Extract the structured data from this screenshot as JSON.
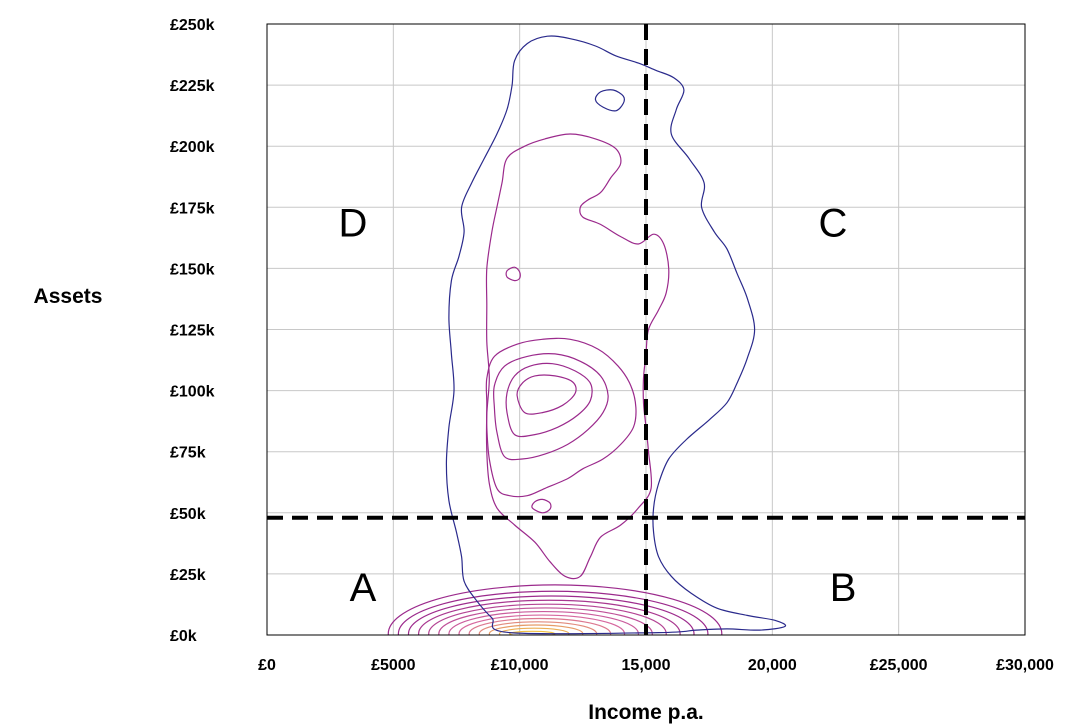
{
  "chart_data": {
    "type": "contour",
    "xlabel": "Income p.a.",
    "ylabel": "Assets",
    "xlim": [
      0,
      30000
    ],
    "ylim": [
      0,
      250000
    ],
    "x_ticks": [
      {
        "value": 0,
        "label": "£0"
      },
      {
        "value": 5000,
        "label": "£5000"
      },
      {
        "value": 10000,
        "label": "£10,000"
      },
      {
        "value": 15000,
        "label": "15,000"
      },
      {
        "value": 20000,
        "label": "20,000"
      },
      {
        "value": 25000,
        "label": "£25,000"
      },
      {
        "value": 30000,
        "label": "£30,000"
      }
    ],
    "y_ticks": [
      {
        "value": 0,
        "label": "£0k"
      },
      {
        "value": 25000,
        "label": "£25k"
      },
      {
        "value": 50000,
        "label": "£50k"
      },
      {
        "value": 75000,
        "label": "£75k"
      },
      {
        "value": 100000,
        "label": "£100k"
      },
      {
        "value": 125000,
        "label": "£125k"
      },
      {
        "value": 150000,
        "label": "£150k"
      },
      {
        "value": 175000,
        "label": "£175k"
      },
      {
        "value": 200000,
        "label": "£200k"
      },
      {
        "value": 225000,
        "label": "£225k"
      },
      {
        "value": 250000,
        "label": "£250k"
      }
    ],
    "grid": true,
    "threshold_lines": {
      "income": 15000,
      "assets": 48000
    },
    "quadrants": [
      {
        "label": "A",
        "x": 3800,
        "y": 14000
      },
      {
        "label": "B",
        "x": 22800,
        "y": 14000
      },
      {
        "label": "C",
        "x": 22400,
        "y": 163000
      },
      {
        "label": "D",
        "x": 3400,
        "y": 163000
      }
    ],
    "colors": {
      "outer": "#2a2a8c",
      "mid": "#9b2a8c",
      "inner": "#d86aa0",
      "core": "#f0c040",
      "dashed": "#000000",
      "grid": "#c8c8c8"
    },
    "contours": [
      {
        "name": "outer",
        "color": "#2a2a8c",
        "points": [
          [
            9600,
            1000
          ],
          [
            8900,
            7000
          ],
          [
            8300,
            14000
          ],
          [
            7800,
            22000
          ],
          [
            7700,
            32000
          ],
          [
            7500,
            42000
          ],
          [
            7200,
            55000
          ],
          [
            7100,
            70000
          ],
          [
            7200,
            85000
          ],
          [
            7400,
            100000
          ],
          [
            7300,
            115000
          ],
          [
            7200,
            130000
          ],
          [
            7300,
            145000
          ],
          [
            7600,
            155000
          ],
          [
            7800,
            165000
          ],
          [
            7700,
            175000
          ],
          [
            8100,
            185000
          ],
          [
            8600,
            195000
          ],
          [
            9100,
            205000
          ],
          [
            9500,
            215000
          ],
          [
            9700,
            225000
          ],
          [
            9800,
            235000
          ],
          [
            10300,
            242000
          ],
          [
            11100,
            245000
          ],
          [
            12000,
            244000
          ],
          [
            13000,
            241000
          ],
          [
            13800,
            237000
          ],
          [
            14700,
            234000
          ],
          [
            15400,
            231000
          ],
          [
            16100,
            228000
          ],
          [
            16500,
            223000
          ],
          [
            16200,
            215000
          ],
          [
            16000,
            205000
          ],
          [
            16700,
            195000
          ],
          [
            17300,
            185000
          ],
          [
            17200,
            175000
          ],
          [
            17700,
            165000
          ],
          [
            18200,
            158000
          ],
          [
            18600,
            148000
          ],
          [
            19000,
            138000
          ],
          [
            19300,
            125000
          ],
          [
            19000,
            113000
          ],
          [
            18600,
            103000
          ],
          [
            18200,
            95000
          ],
          [
            17500,
            88000
          ],
          [
            16600,
            80000
          ],
          [
            15900,
            72000
          ],
          [
            15500,
            62000
          ],
          [
            15300,
            52000
          ],
          [
            15300,
            42000
          ],
          [
            15500,
            32000
          ],
          [
            16000,
            24000
          ],
          [
            16800,
            17000
          ],
          [
            17800,
            11000
          ],
          [
            19000,
            8000
          ],
          [
            20100,
            6000
          ],
          [
            20500,
            3500
          ],
          [
            19500,
            2000
          ],
          [
            18200,
            2500
          ],
          [
            17000,
            2000
          ],
          [
            15500,
            1000
          ],
          [
            9600,
            1000
          ]
        ]
      },
      {
        "name": "hole",
        "color": "#2a2a8c",
        "points": [
          [
            13300,
            216000
          ],
          [
            13800,
            214500
          ],
          [
            14100,
            217500
          ],
          [
            14100,
            220500
          ],
          [
            13700,
            223000
          ],
          [
            13200,
            222200
          ],
          [
            13000,
            219000
          ],
          [
            13300,
            216000
          ]
        ]
      },
      {
        "name": "mid-upper",
        "color": "#9b2a8c",
        "points": [
          [
            9500,
            195000
          ],
          [
            10200,
            200000
          ],
          [
            11000,
            203000
          ],
          [
            12000,
            205000
          ],
          [
            13000,
            203000
          ],
          [
            13800,
            199000
          ],
          [
            14000,
            193000
          ],
          [
            13600,
            187000
          ],
          [
            13200,
            181000
          ],
          [
            12700,
            178000
          ],
          [
            12400,
            175000
          ],
          [
            12500,
            171000
          ],
          [
            13200,
            168000
          ],
          [
            14000,
            163000
          ],
          [
            14700,
            160000
          ],
          [
            15300,
            164000
          ],
          [
            15700,
            160000
          ],
          [
            15900,
            150000
          ],
          [
            15800,
            140000
          ],
          [
            15500,
            133000
          ],
          [
            15100,
            125000
          ],
          [
            15000,
            115000
          ],
          [
            14900,
            105000
          ],
          [
            14900,
            95000
          ],
          [
            15000,
            85000
          ],
          [
            15100,
            75000
          ],
          [
            15200,
            60000
          ],
          [
            14700,
            52000
          ],
          [
            14000,
            45000
          ],
          [
            13200,
            40000
          ],
          [
            12800,
            32000
          ],
          [
            12400,
            24000
          ],
          [
            11800,
            24000
          ],
          [
            11200,
            30000
          ],
          [
            10600,
            38000
          ],
          [
            9800,
            45000
          ],
          [
            9100,
            52000
          ],
          [
            8800,
            62000
          ],
          [
            8700,
            75000
          ],
          [
            8700,
            90000
          ],
          [
            8800,
            105000
          ],
          [
            8700,
            120000
          ],
          [
            8700,
            135000
          ],
          [
            8700,
            150000
          ],
          [
            8900,
            165000
          ],
          [
            9100,
            175000
          ],
          [
            9300,
            185000
          ],
          [
            9500,
            195000
          ]
        ]
      },
      {
        "name": "islet",
        "color": "#9b2a8c",
        "points": [
          [
            9800,
            145000
          ],
          [
            10000,
            146000
          ],
          [
            10000,
            148500
          ],
          [
            9800,
            150500
          ],
          [
            9500,
            149000
          ],
          [
            9500,
            146500
          ],
          [
            9800,
            145000
          ]
        ]
      },
      {
        "name": "islet2",
        "color": "#9b2a8c",
        "points": [
          [
            10900,
            50000
          ],
          [
            11200,
            51500
          ],
          [
            11200,
            54000
          ],
          [
            10900,
            55500
          ],
          [
            10600,
            54500
          ],
          [
            10500,
            52000
          ],
          [
            10900,
            50000
          ]
        ]
      },
      {
        "name": "level3",
        "color": "#9b2a8c",
        "points": [
          [
            9100,
            60000
          ],
          [
            9600,
            57000
          ],
          [
            10300,
            57000
          ],
          [
            11000,
            60000
          ],
          [
            11900,
            64000
          ],
          [
            12500,
            68000
          ],
          [
            13300,
            72000
          ],
          [
            14000,
            78000
          ],
          [
            14500,
            85000
          ],
          [
            14600,
            93000
          ],
          [
            14400,
            102000
          ],
          [
            13900,
            110000
          ],
          [
            13100,
            117000
          ],
          [
            12000,
            121000
          ],
          [
            10900,
            121000
          ],
          [
            9900,
            119000
          ],
          [
            9000,
            114000
          ],
          [
            8700,
            105000
          ],
          [
            8700,
            95000
          ],
          [
            8700,
            85000
          ],
          [
            8800,
            72000
          ],
          [
            9100,
            60000
          ]
        ]
      },
      {
        "name": "level4",
        "color": "#9b2a8c",
        "points": [
          [
            9400,
            73000
          ],
          [
            10100,
            72000
          ],
          [
            11000,
            74000
          ],
          [
            11900,
            78000
          ],
          [
            12700,
            84000
          ],
          [
            13300,
            91000
          ],
          [
            13500,
            98000
          ],
          [
            13200,
            106000
          ],
          [
            12400,
            112000
          ],
          [
            11400,
            115000
          ],
          [
            10300,
            114000
          ],
          [
            9400,
            110000
          ],
          [
            9000,
            102000
          ],
          [
            9000,
            93000
          ],
          [
            9100,
            83000
          ],
          [
            9400,
            73000
          ]
        ]
      },
      {
        "name": "level5",
        "color": "#9b2a8c",
        "points": [
          [
            9800,
            82000
          ],
          [
            10600,
            82000
          ],
          [
            11500,
            85000
          ],
          [
            12300,
            90000
          ],
          [
            12800,
            96000
          ],
          [
            12800,
            103000
          ],
          [
            12200,
            108000
          ],
          [
            11300,
            111000
          ],
          [
            10400,
            110000
          ],
          [
            9800,
            106000
          ],
          [
            9500,
            99000
          ],
          [
            9500,
            91000
          ],
          [
            9800,
            82000
          ]
        ]
      },
      {
        "name": "level6",
        "color": "#9b2a8c",
        "points": [
          [
            10200,
            91000
          ],
          [
            10900,
            91000
          ],
          [
            11700,
            94000
          ],
          [
            12200,
            99000
          ],
          [
            12100,
            103500
          ],
          [
            11400,
            106000
          ],
          [
            10600,
            106000
          ],
          [
            10100,
            103000
          ],
          [
            9900,
            98000
          ],
          [
            10200,
            91000
          ]
        ]
      }
    ],
    "rings": {
      "cx": 10500,
      "cy": 500,
      "count": 13,
      "max_rx": 6600,
      "max_ry": 20000,
      "min_rx": 900,
      "min_ry": 1000
    }
  }
}
